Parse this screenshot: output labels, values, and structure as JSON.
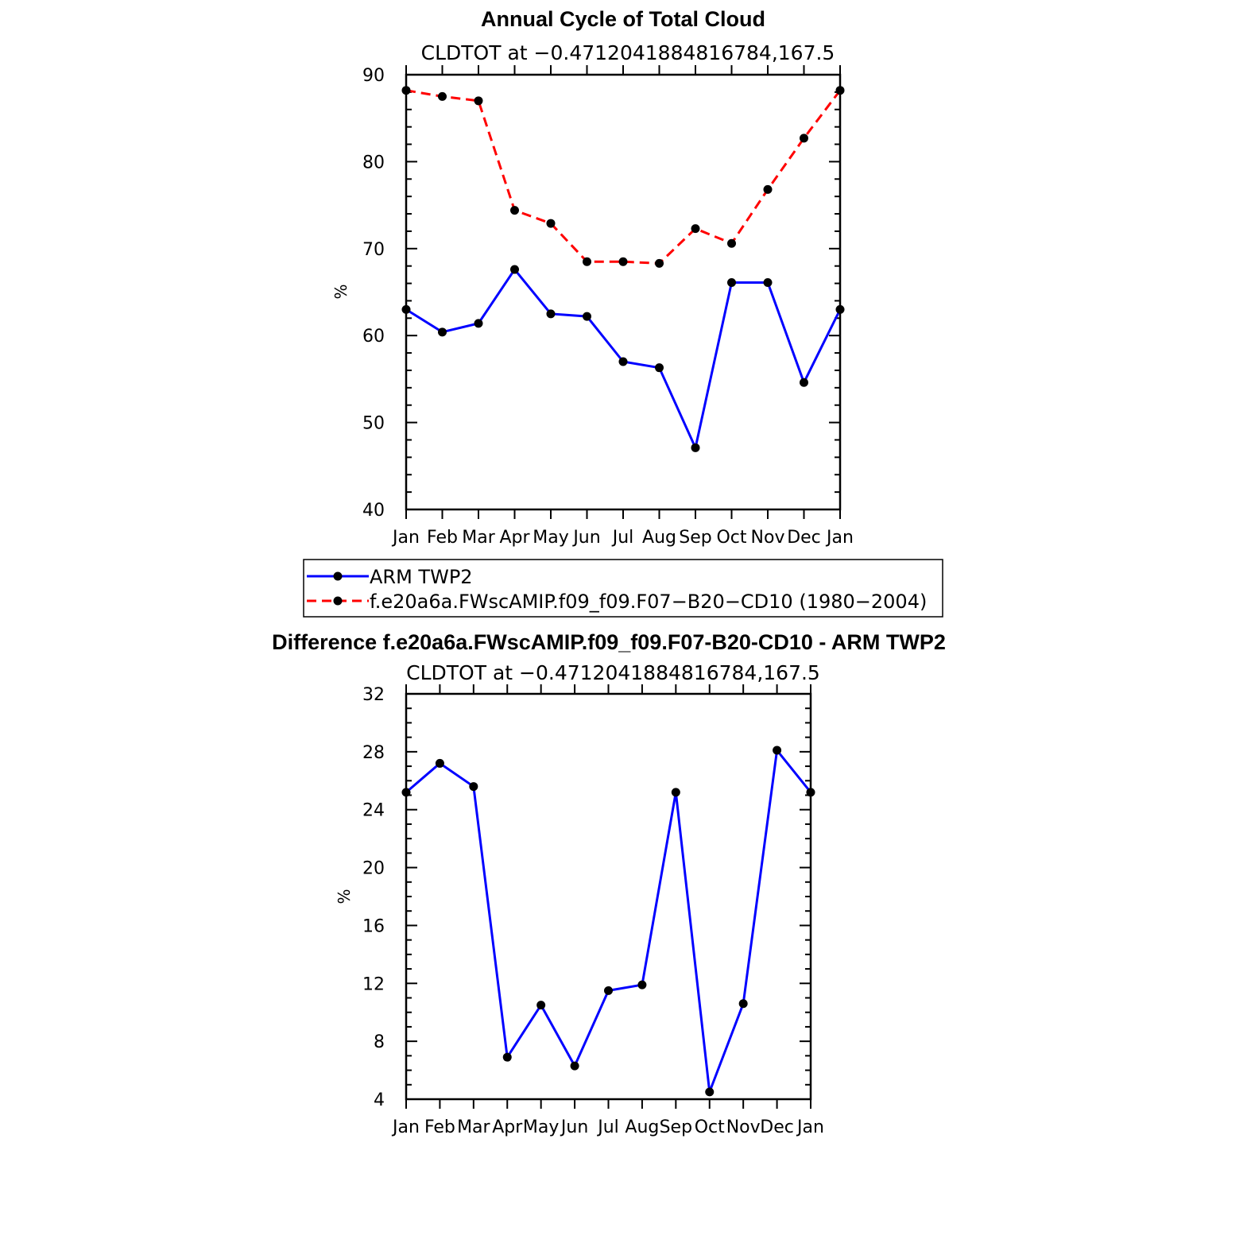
{
  "chart_data": [
    {
      "type": "line",
      "title": "Annual Cycle of Total Cloud",
      "subtitle": "CLDTOT at −0.4712041884816784,167.5",
      "ylabel": "%",
      "ylim": [
        40,
        90
      ],
      "yticks": [
        40,
        50,
        60,
        70,
        80,
        90
      ],
      "ytick_labels": [
        "40",
        "50",
        "60",
        "70",
        "80",
        "90"
      ],
      "categories": [
        "Jan",
        "Feb",
        "Mar",
        "Apr",
        "May",
        "Jun",
        "Jul",
        "Aug",
        "Sep",
        "Oct",
        "Nov",
        "Dec",
        "Jan"
      ],
      "series": [
        {
          "name": "ARM TWP2",
          "color": "#0000ff",
          "dashed": false,
          "values": [
            63.0,
            60.4,
            61.4,
            67.6,
            62.5,
            62.2,
            57.0,
            56.3,
            47.1,
            66.1,
            66.1,
            54.6,
            63.0
          ]
        },
        {
          "name": "f.e20a6a.FWscAMIP.f09_f09.F07−B20−CD10 (1980−2004)",
          "color": "#ff0000",
          "dashed": true,
          "values": [
            88.2,
            87.5,
            87.0,
            74.4,
            72.9,
            68.5,
            68.5,
            68.3,
            72.3,
            70.6,
            76.8,
            82.7,
            88.2
          ]
        }
      ],
      "grid": false,
      "legend": "bottom"
    },
    {
      "type": "line",
      "title": "Difference f.e20a6a.FWscAMIP.f09_f09.F07-B20-CD10 - ARM TWP2",
      "subtitle": "CLDTOT at −0.4712041884816784,167.5",
      "ylabel": "%",
      "ylim": [
        4,
        32
      ],
      "yticks": [
        4,
        8,
        12,
        16,
        20,
        24,
        28,
        32
      ],
      "ytick_labels": [
        "4",
        "8",
        "12",
        "16",
        "20",
        "24",
        "28",
        "32"
      ],
      "categories": [
        "Jan",
        "Feb",
        "Mar",
        "Apr",
        "May",
        "Jun",
        "Jul",
        "Aug",
        "Sep",
        "Oct",
        "Nov",
        "Dec",
        "Jan"
      ],
      "series": [
        {
          "color": "#0000ff",
          "dashed": false,
          "values": [
            25.2,
            27.2,
            25.6,
            6.9,
            10.5,
            6.3,
            11.5,
            11.9,
            25.2,
            4.5,
            10.6,
            28.1,
            25.2
          ]
        }
      ],
      "grid": false
    }
  ]
}
